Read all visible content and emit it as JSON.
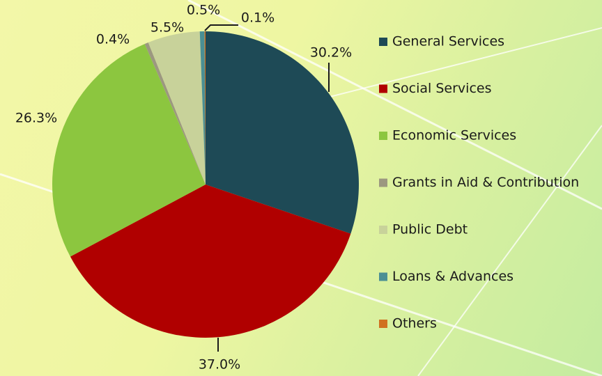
{
  "chart_data": {
    "type": "pie",
    "categories": [
      "General Services",
      "Social Services",
      "Economic Services",
      "Grants in Aid & Contribution",
      "Public Debt",
      "Loans & Advances",
      "Others"
    ],
    "values": [
      30.2,
      37.0,
      26.3,
      0.4,
      5.5,
      0.5,
      0.1
    ],
    "value_labels": [
      "30.2%",
      "37.0%",
      "26.3%",
      "0.4%",
      "5.5%",
      "0.5%",
      "0.1%"
    ],
    "colors": [
      "#1e4a56",
      "#b00000",
      "#8cc63f",
      "#9c9880",
      "#c8d29a",
      "#4a8f94",
      "#d07020"
    ],
    "legend": "right"
  }
}
